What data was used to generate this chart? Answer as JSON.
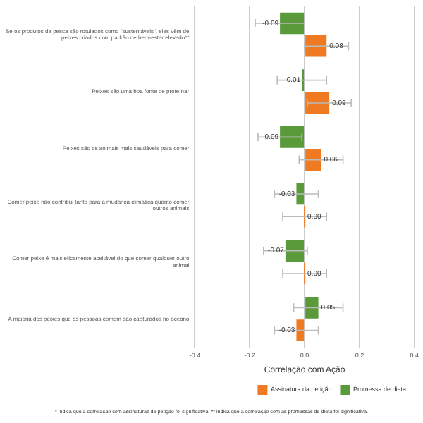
{
  "chart_data": {
    "type": "bar",
    "orientation": "horizontal",
    "xlabel": "Correlação com Ação",
    "categories": [
      "Se os produtos da pesca são rotulados como \"sustentáveis\", eles vêm de peixes criados com padrão de bem-estar elevado**",
      "Peixes são uma boa fonte de proteína*",
      "Peixes são os animais mais saudáveis para comer",
      "Comer peixe não contribui tanto para a mudança climática quanto comer outros animais",
      "Comer peixe é mais eticamente aceitável do que comer qualquer outro animal",
      "A maioria dos peixes que as pessoas comem são capturados no oceano"
    ],
    "series": [
      {
        "name": "Promessa de dieta",
        "color": "#5a9a3a",
        "values": [
          -0.09,
          -0.01,
          -0.09,
          -0.03,
          -0.07,
          0.05
        ],
        "errors": [
          0.09,
          0.09,
          0.08,
          0.08,
          0.08,
          0.09
        ],
        "value_labels": [
          "-0.09",
          "-0.01",
          "-0.09",
          "-0.03",
          "-0.07",
          "0.05"
        ]
      },
      {
        "name": "Assinatura da petição",
        "color": "#f07a22",
        "values": [
          0.08,
          0.09,
          0.06,
          0.0,
          0.0,
          -0.03
        ],
        "errors": [
          0.08,
          0.08,
          0.08,
          0.08,
          0.08,
          0.08
        ],
        "value_labels": [
          "0.08",
          "0.09",
          "0.06",
          "0.00",
          "0.00",
          "-0.03"
        ]
      }
    ],
    "xlim": [
      -0.4,
      0.4
    ],
    "xticks": [
      -0.4,
      -0.2,
      {
        "value": 0,
        "label": "0.0"
      },
      0.2,
      0.4
    ],
    "grid": "x",
    "legend": "bottom right",
    "annotations": [
      "* indica que a correlação com assinaturas de petição foi significativa. ** indica que a correlação com as promessas de dieta foi significativa."
    ]
  }
}
